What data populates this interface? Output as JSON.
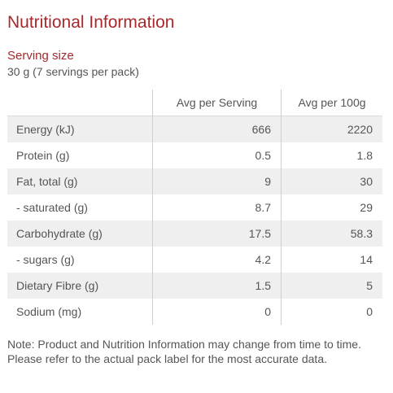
{
  "title": "Nutritional Information",
  "serving": {
    "label": "Serving size",
    "value": "30 g (7 servings per pack)"
  },
  "table": {
    "headers": [
      "",
      "Avg per Serving",
      "Avg per 100g"
    ],
    "rows": [
      {
        "name": "Energy (kJ)",
        "per_serving": "666",
        "per_100g": "2220"
      },
      {
        "name": "Protein (g)",
        "per_serving": "0.5",
        "per_100g": "1.8"
      },
      {
        "name": "Fat, total (g)",
        "per_serving": "9",
        "per_100g": "30"
      },
      {
        "name": "- saturated (g)",
        "per_serving": "8.7",
        "per_100g": "29"
      },
      {
        "name": "Carbohydrate (g)",
        "per_serving": "17.5",
        "per_100g": "58.3"
      },
      {
        "name": "- sugars (g)",
        "per_serving": "4.2",
        "per_100g": "14"
      },
      {
        "name": "Dietary Fibre (g)",
        "per_serving": "1.5",
        "per_100g": "5"
      },
      {
        "name": "Sodium (mg)",
        "per_serving": "0",
        "per_100g": "0"
      }
    ]
  },
  "note": "Note: Product and Nutrition Information may change from time to time. Please refer to the actual pack label for the most accurate data.",
  "colors": {
    "accent": "#a8282c",
    "text": "#555555",
    "row_shade": "#efefef",
    "divider": "#cfcfcf"
  }
}
